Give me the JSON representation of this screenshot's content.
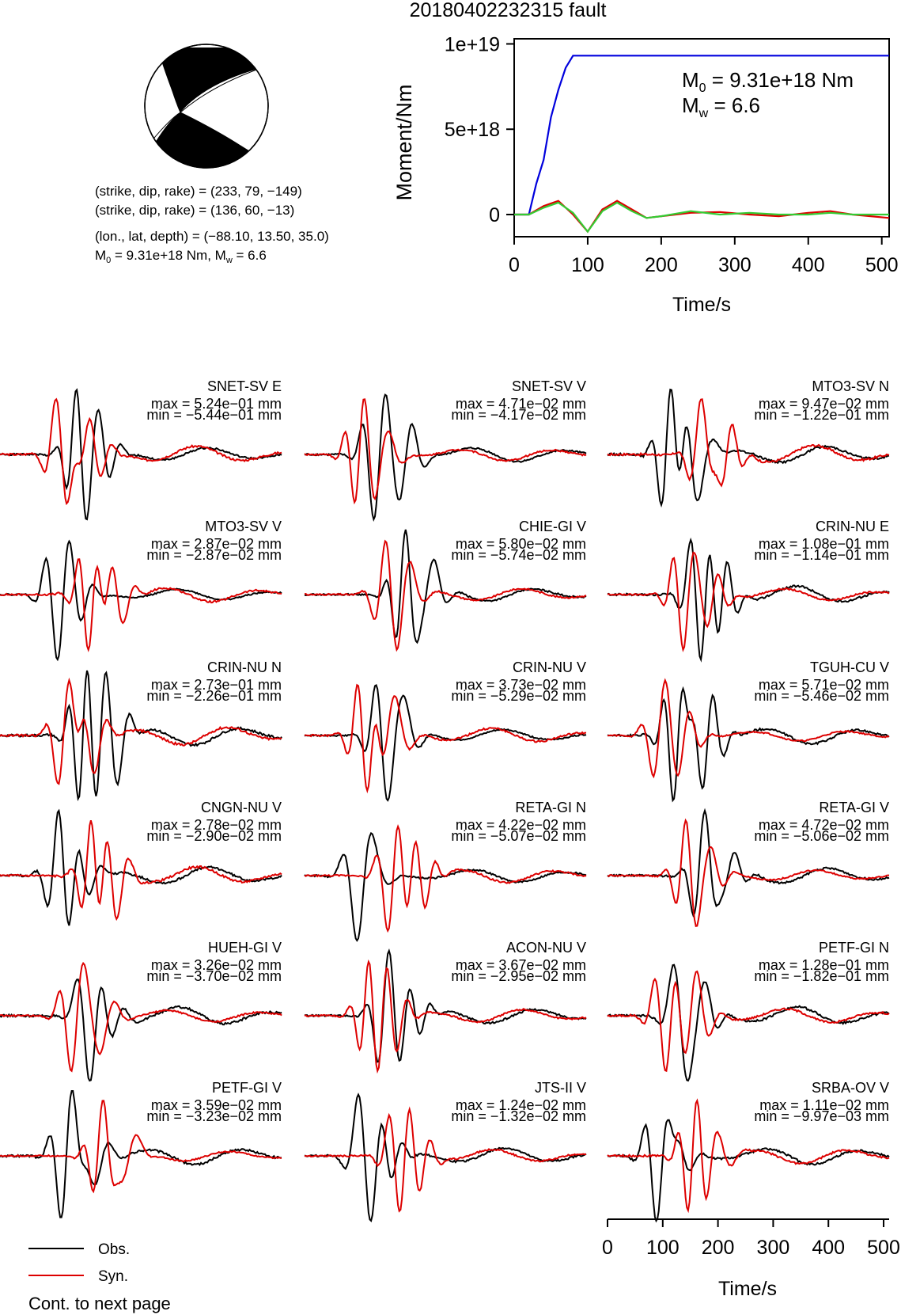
{
  "title": "20180402232315 fault",
  "colors": {
    "obs": "#000000",
    "syn": "#dd0000",
    "moment": "#0000dd",
    "green": "#33cc33"
  },
  "focal": {
    "planes": [
      "(strike, dip, rake) = (233, 79, −149)",
      "(strike, dip, rake) = (136, 60, −13)"
    ],
    "location": "(lon., lat, depth) = (−88.10, 13.50, 35.0)",
    "moment_main": "M",
    "moment_sub": "0",
    "moment_rest": " = 9.31e+18 Nm, M",
    "mw_sub": "w",
    "mw_rest": " = 6.6"
  },
  "chart_data": [
    {
      "type": "line",
      "name": "moment-rate",
      "xlabel": "Time/s",
      "ylabel": "Moment/Nm",
      "xlim": [
        0,
        510
      ],
      "ylim": [
        -1.3e+18,
        1.03e+19
      ],
      "xticks": [
        "0",
        "100",
        "200",
        "300",
        "400",
        "500"
      ],
      "yticks": [
        "0",
        "5e+18",
        "1e+19"
      ],
      "annotation": {
        "m0_main": "M",
        "m0_sub": "0",
        "m0_rest": " = 9.31e+18 Nm",
        "mw_main": "M",
        "mw_sub": "w",
        "mw_rest": " = 6.6"
      },
      "series": [
        {
          "color": "blue",
          "x": [
            0,
            20,
            30,
            40,
            50,
            60,
            70,
            80,
            100,
            200,
            300,
            400,
            510
          ],
          "y": [
            0,
            0,
            1.8e+18,
            3.2e+18,
            5.7e+18,
            7.3e+18,
            8.6e+18,
            9.31e+18,
            9.31e+18,
            9.31e+18,
            9.31e+18,
            9.31e+18,
            9.31e+18
          ]
        },
        {
          "color": "red",
          "x": [
            0,
            20,
            40,
            60,
            80,
            100,
            120,
            140,
            160,
            180,
            200,
            240,
            280,
            320,
            360,
            400,
            430,
            460,
            510
          ],
          "y": [
            0,
            0,
            5e+17,
            8e+17,
            0,
            -1e+18,
            3e+17,
            8e+17,
            3e+17,
            -2e+17,
            -1e+17,
            1e+17,
            1.5e+17,
            0,
            -1e+17,
            1e+17,
            2e+17,
            0,
            -2e+17
          ]
        },
        {
          "color": "green",
          "x": [
            0,
            20,
            40,
            60,
            80,
            100,
            120,
            140,
            160,
            180,
            200,
            240,
            280,
            320,
            360,
            400,
            430,
            460,
            510
          ],
          "y": [
            0,
            0,
            4e+17,
            7e+17,
            1e+17,
            -1e+18,
            2e+17,
            7e+17,
            2e+17,
            -2e+17,
            -1e+17,
            2e+17,
            0,
            1e+17,
            0,
            0,
            1e+17,
            0,
            0
          ]
        }
      ]
    },
    {
      "type": "line",
      "name": "waveforms",
      "xlabel": "Time/s",
      "xlim": [
        0,
        510
      ],
      "xticks": [
        "0",
        "100",
        "200",
        "300",
        "400",
        "500"
      ],
      "legend": [
        {
          "label": "Obs.",
          "color": "black"
        },
        {
          "label": "Syn.",
          "color": "red"
        }
      ],
      "note": "Cont. to next page",
      "traces": [
        {
          "station": "SNET-SV E",
          "max": "max = 5.24e−01 mm",
          "min": "min = −5.44e−01 mm"
        },
        {
          "station": "SNET-SV V",
          "max": "max = 4.71e−02 mm",
          "min": "min = −4.17e−02 mm"
        },
        {
          "station": "MTO3-SV N",
          "max": "max = 9.47e−02 mm",
          "min": "min = −1.22e−01 mm"
        },
        {
          "station": "MTO3-SV V",
          "max": "max = 2.87e−02 mm",
          "min": "min = −2.87e−02 mm"
        },
        {
          "station": "CHIE-GI V",
          "max": "max = 5.80e−02 mm",
          "min": "min = −5.74e−02 mm"
        },
        {
          "station": "CRIN-NU E",
          "max": "max = 1.08e−01 mm",
          "min": "min = −1.14e−01 mm"
        },
        {
          "station": "CRIN-NU N",
          "max": "max = 2.73e−01 mm",
          "min": "min = −2.26e−01 mm"
        },
        {
          "station": "CRIN-NU V",
          "max": "max = 3.73e−02 mm",
          "min": "min = −5.29e−02 mm"
        },
        {
          "station": "TGUH-CU V",
          "max": "max = 5.71e−02 mm",
          "min": "min = −5.46e−02 mm"
        },
        {
          "station": "CNGN-NU V",
          "max": "max = 2.78e−02 mm",
          "min": "min = −2.90e−02 mm"
        },
        {
          "station": "RETA-GI N",
          "max": "max = 4.22e−02 mm",
          "min": "min = −5.07e−02 mm"
        },
        {
          "station": "RETA-GI V",
          "max": "max = 4.72e−02 mm",
          "min": "min = −5.06e−02 mm"
        },
        {
          "station": "HUEH-GI V",
          "max": "max = 3.26e−02 mm",
          "min": "min = −3.70e−02 mm"
        },
        {
          "station": "ACON-NU V",
          "max": "max = 3.67e−02 mm",
          "min": "min = −2.95e−02 mm"
        },
        {
          "station": "PETF-GI N",
          "max": "max = 1.28e−01 mm",
          "min": "min = −1.82e−01 mm"
        },
        {
          "station": "PETF-GI V",
          "max": "max = 3.59e−02 mm",
          "min": "min = −3.23e−02 mm"
        },
        {
          "station": "JTS-II V",
          "max": "max = 1.24e−02 mm",
          "min": "min = −1.32e−02 mm"
        },
        {
          "station": "SRBA-OV V",
          "max": "max = 1.11e−02 mm",
          "min": "min = −9.97e−03 mm"
        }
      ]
    }
  ]
}
